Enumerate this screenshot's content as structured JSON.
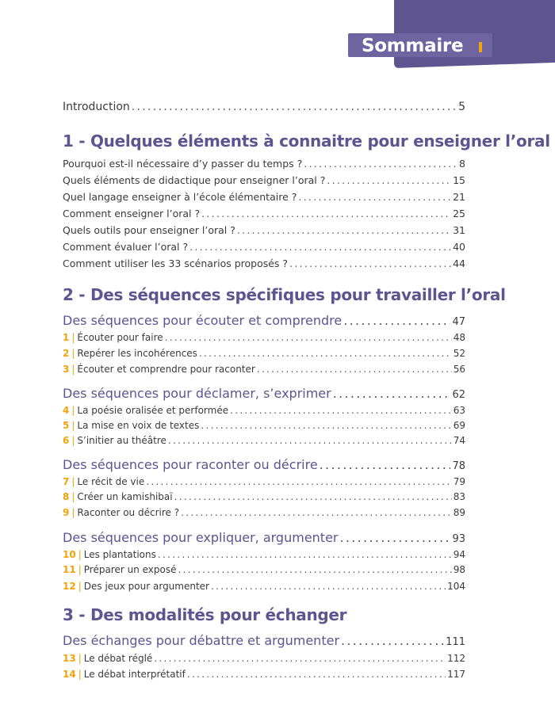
{
  "header": {
    "title": "Sommaire"
  },
  "accent": "#f0a30a",
  "brand": "#5d5490",
  "introduction": {
    "label": "Introduction",
    "page": "5"
  },
  "sections": [
    {
      "title": "1 - Quelques éléments à connaitre pour enseigner l’oral",
      "entries": [
        {
          "label": "Pourquoi est-il nécessaire d’y passer du temps ?",
          "page": "8"
        },
        {
          "label": "Quels éléments de didactique pour enseigner l’oral ?",
          "page": "15"
        },
        {
          "label": "Quel langage enseigner à l’école élémentaire ?",
          "page": "21"
        },
        {
          "label": "Comment enseigner l’oral ?",
          "page": "25"
        },
        {
          "label": "Quels outils pour enseigner l’oral ?",
          "page": "31"
        },
        {
          "label": "Comment évaluer l’oral ?",
          "page": "40"
        },
        {
          "label": "Comment utiliser les 33 scénarios proposés ?",
          "page": "44"
        }
      ]
    },
    {
      "title": "2 - Des séquences spécifiques pour travailler l’oral",
      "groups": [
        {
          "label": "Des séquences pour écouter et comprendre",
          "page": "47",
          "items": [
            {
              "num": "1",
              "label": "Écouter pour faire",
              "page": "48"
            },
            {
              "num": "2",
              "label": "Repérer les incohérences",
              "page": "52"
            },
            {
              "num": "3",
              "label": "Écouter et comprendre pour raconter",
              "page": "56"
            }
          ]
        },
        {
          "label": "Des séquences pour déclamer, s’exprimer",
          "page": "62",
          "items": [
            {
              "num": "4",
              "label": "La poésie oralisée et performée",
              "page": "63"
            },
            {
              "num": "5",
              "label": "La mise en voix de textes",
              "page": "69"
            },
            {
              "num": "6",
              "label": "S’initier au théâtre",
              "page": "74"
            }
          ]
        },
        {
          "label": "Des séquences pour raconter ou décrire",
          "page": "78",
          "items": [
            {
              "num": "7",
              "label": "Le récit de vie",
              "page": "79"
            },
            {
              "num": "8",
              "label": "Créer un kamishibaï",
              "page": "83"
            },
            {
              "num": "9",
              "label": "Raconter ou décrire ?",
              "page": "89"
            }
          ]
        },
        {
          "label": "Des séquences pour expliquer, argumenter",
          "page": "93",
          "items": [
            {
              "num": "10",
              "label": "Les plantations",
              "page": "94"
            },
            {
              "num": "11",
              "label": "Préparer un exposé",
              "page": "98"
            },
            {
              "num": "12",
              "label": "Des jeux pour argumenter",
              "page": "104"
            }
          ]
        }
      ]
    },
    {
      "title": "3 - Des modalités pour échanger",
      "groups": [
        {
          "label": "Des échanges pour débattre et argumenter",
          "page": "111",
          "items": [
            {
              "num": "13",
              "label": "Le débat réglé",
              "page": "112"
            },
            {
              "num": "14",
              "label": "Le débat interprétatif",
              "page": "117"
            }
          ]
        }
      ]
    }
  ]
}
